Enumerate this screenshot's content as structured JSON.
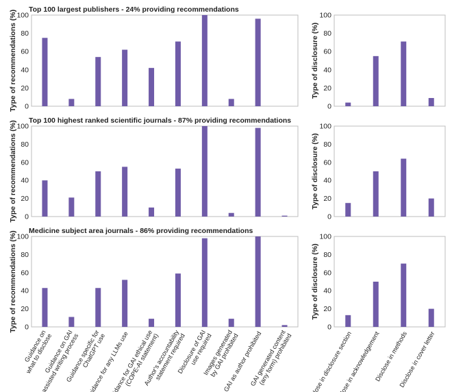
{
  "colors": {
    "bar": "#6f5ba8",
    "frame": "#bcbcbc"
  },
  "chart_data": [
    {
      "type": "bar",
      "title": "Top 100 largest publishers - 24% providing recommendations",
      "ylabel": "Type of recommendations (%)",
      "ylim": [
        0,
        100
      ],
      "yticks": [
        0,
        20,
        40,
        60,
        80,
        100
      ],
      "categories": [
        "Guidance on what to disclose",
        "Guidance on GAI assisted writing process",
        "Guidance specific for ChatGPT use",
        "Guidance for any LLMs use",
        "Guidance for GAI ethical use (COPE-AI statement)",
        "Author's accountability statement required",
        "Disclosure of GAI use required",
        "Images generated by GAI prohibited",
        "GAI as author prohibited",
        "GAI generated content (any form) prohibited"
      ],
      "values": [
        75,
        8,
        54,
        62,
        42,
        71,
        100,
        8,
        96,
        0
      ]
    },
    {
      "type": "bar",
      "title": "",
      "ylabel": "Type of disclosure (%)",
      "ylim": [
        0,
        100
      ],
      "yticks": [
        0,
        20,
        40,
        60,
        80,
        100
      ],
      "categories": [
        "Disclose in disclosure section",
        "Disclose in acknowledgement",
        "Disclose in methods",
        "Disclose in cover letter"
      ],
      "values": [
        4,
        55,
        71,
        9
      ]
    },
    {
      "type": "bar",
      "title": "Top 100 highest ranked scientific journals - 87% providing recommendations",
      "ylabel": "Type of recommendations (%)",
      "ylim": [
        0,
        100
      ],
      "yticks": [
        0,
        20,
        40,
        60,
        80,
        100
      ],
      "categories": [
        "Guidance on what to disclose",
        "Guidance on GAI assisted writing process",
        "Guidance specific for ChatGPT use",
        "Guidance for any LLMs use",
        "Guidance for GAI ethical use (COPE-AI statement)",
        "Author's accountability statement required",
        "Disclosure of GAI use required",
        "Images generated by GAI prohibited",
        "GAI as author prohibited",
        "GAI generated content (any form) prohibited"
      ],
      "values": [
        40,
        21,
        50,
        55,
        10,
        53,
        100,
        4,
        98,
        1
      ]
    },
    {
      "type": "bar",
      "title": "",
      "ylabel": "Type of disclosure (%)",
      "ylim": [
        0,
        100
      ],
      "yticks": [
        0,
        20,
        40,
        60,
        80,
        100
      ],
      "categories": [
        "Disclose in disclosure section",
        "Disclose in acknowledgement",
        "Disclose in methods",
        "Disclose in cover letter"
      ],
      "values": [
        15,
        50,
        64,
        20
      ]
    },
    {
      "type": "bar",
      "title": "Medicine subject area journals - 86% providing recommendations",
      "ylabel": "Type of recommendations (%)",
      "ylim": [
        0,
        100
      ],
      "yticks": [
        0,
        20,
        40,
        60,
        80,
        100
      ],
      "categories": [
        "Guidance on what to disclose",
        "Guidance on GAI assisted writing process",
        "Guidance specific for ChatGPT use",
        "Guidance for any LLMs use",
        "Guidance for GAI ethical use (COPE-AI statement)",
        "Author's accountability statement required",
        "Disclosure of GAI use required",
        "Images generated by GAI prohibited",
        "GAI as author prohibited",
        "GAI generated content (any form) prohibited"
      ],
      "values": [
        43,
        11,
        43,
        52,
        9,
        59,
        98,
        9,
        100,
        2
      ]
    },
    {
      "type": "bar",
      "title": "",
      "ylabel": "Type of disclosure (%)",
      "ylim": [
        0,
        100
      ],
      "yticks": [
        0,
        20,
        40,
        60,
        80,
        100
      ],
      "categories": [
        "Disclose in disclosure section",
        "Disclose in acknowledgement",
        "Disclose in methods",
        "Disclose in cover letter"
      ],
      "values": [
        13,
        50,
        70,
        20
      ]
    }
  ],
  "x_tick_labels": {
    "left": [
      [
        "Guidance on",
        "what to disclose"
      ],
      [
        "Guidance on GAI",
        "assisted writing process"
      ],
      [
        "Guidance specific for",
        "ChatGPT use"
      ],
      [
        "Guidance for any LLMs use"
      ],
      [
        "Guidance for GAI ethical use",
        "(COPE-AI statement)"
      ],
      [
        "Author's accountability",
        "statement required"
      ],
      [
        "Disclosure of GAI",
        "use required"
      ],
      [
        "Images generated",
        "by GAI prohibited"
      ],
      [
        "GAI as author prohibited"
      ],
      [
        "GAI generated content",
        "(any form) prohibited"
      ]
    ],
    "right": [
      [
        "Disclose in disclosure section"
      ],
      [
        "Disclose in acknowledgement"
      ],
      [
        "Disclose in methods"
      ],
      [
        "Disclose in cover letter"
      ]
    ]
  }
}
